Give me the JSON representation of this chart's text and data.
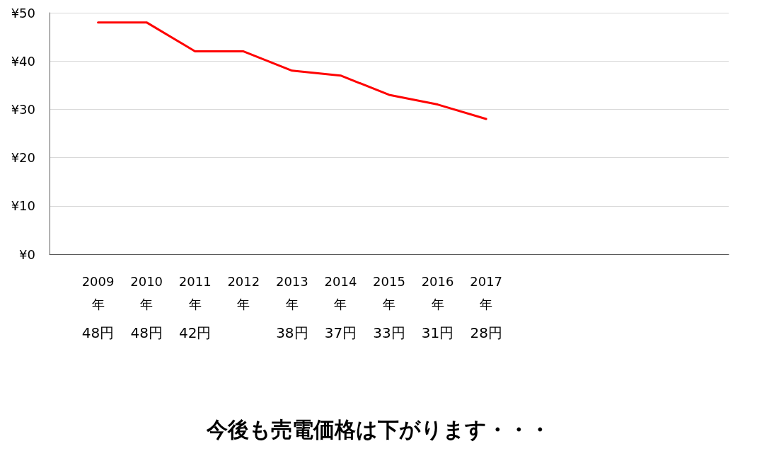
{
  "chart_data": {
    "type": "line",
    "title": "今後も売電価格は下がります・・・",
    "categories": [
      null,
      "2009年",
      "2010年",
      "2011年",
      "2012年",
      "2013年",
      "2014年",
      "2015年",
      "2016年",
      "2017年",
      null,
      null,
      null,
      null,
      null
    ],
    "series": [
      {
        "color": "#ff0000",
        "values": [
          null,
          48,
          48,
          42,
          42,
          38,
          37,
          33,
          31,
          28,
          null,
          null,
          null,
          null,
          null
        ],
        "value_labels": [
          null,
          "48円",
          "48円",
          "42円",
          null,
          "38円",
          "37円",
          "33円",
          "31円",
          "28円",
          null,
          null,
          null,
          null,
          null
        ]
      }
    ],
    "ylim": [
      0,
      50
    ],
    "yticks": [
      {
        "value": 0,
        "label": "¥0"
      },
      {
        "value": 10,
        "label": "¥10"
      },
      {
        "value": 20,
        "label": "¥20"
      },
      {
        "value": 30,
        "label": "¥30"
      },
      {
        "value": 40,
        "label": "¥40"
      },
      {
        "value": 50,
        "label": "¥50"
      }
    ],
    "grid": "y",
    "marker": "none",
    "line_style": "solid"
  }
}
